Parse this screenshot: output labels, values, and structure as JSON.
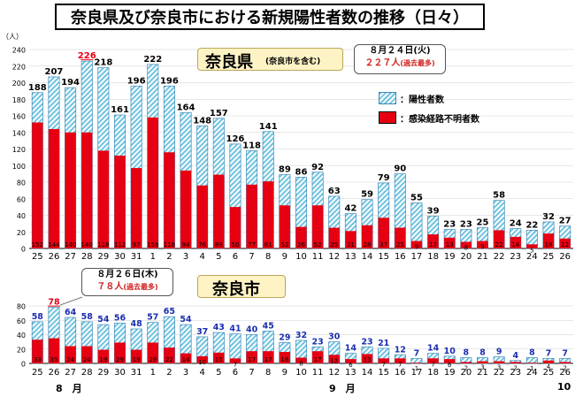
{
  "title": "奈良県及び奈良市における新規陽性者数の推移（日々）",
  "y_unit": "（人）",
  "legend": {
    "positive": "：陽性者数",
    "unknown": "：感染経路不明者数"
  },
  "colors": {
    "positive_hatch": "#6fc3e0",
    "positive_border": "#3a89b8",
    "unknown": "#e60012",
    "city_label": "#1a2eb0"
  },
  "months": {
    "aug": "8　月",
    "sep": "9　月",
    "oct": "10"
  },
  "prefecture_callout": {
    "date": "８月２４日(火)",
    "value": "２２７人",
    "note": "(過去最多)"
  },
  "city_callout": {
    "date": "８月２６日(木)",
    "value": "７８人",
    "note": "(過去最多)"
  },
  "chart_data": [
    {
      "type": "bar",
      "title": "奈良県",
      "subtitle": "(奈良市を含む)",
      "categories": [
        "25",
        "26",
        "27",
        "28",
        "29",
        "30",
        "31",
        "1",
        "2",
        "3",
        "4",
        "5",
        "6",
        "7",
        "8",
        "9",
        "10",
        "11",
        "12",
        "13",
        "14",
        "15",
        "16",
        "17",
        "18",
        "19",
        "20",
        "21",
        "22",
        "23",
        "24",
        "25",
        "26"
      ],
      "ylim": [
        0,
        240
      ],
      "yticks": [
        0,
        20,
        40,
        60,
        80,
        100,
        120,
        140,
        160,
        180,
        200,
        220,
        240
      ],
      "series": [
        {
          "name": "陽性者数",
          "values": [
            188,
            207,
            194,
            226,
            218,
            161,
            196,
            222,
            196,
            164,
            148,
            157,
            126,
            118,
            141,
            89,
            86,
            92,
            63,
            42,
            59,
            79,
            90,
            55,
            39,
            23,
            23,
            25,
            58,
            24,
            22,
            32,
            27
          ]
        },
        {
          "name": "感染経路不明者数",
          "values": [
            152,
            144,
            140,
            140,
            118,
            112,
            97,
            158,
            116,
            94,
            76,
            89,
            50,
            77,
            81,
            52,
            26,
            52,
            25,
            21,
            28,
            37,
            25,
            9,
            17,
            13,
            8,
            9,
            22,
            14,
            5,
            18,
            12
          ]
        }
      ]
    },
    {
      "type": "bar",
      "title": "奈良市",
      "categories": [
        "25",
        "26",
        "27",
        "28",
        "29",
        "30",
        "31",
        "1",
        "2",
        "3",
        "4",
        "5",
        "6",
        "7",
        "8",
        "9",
        "10",
        "11",
        "12",
        "13",
        "14",
        "15",
        "16",
        "17",
        "18",
        "19",
        "20",
        "21",
        "22",
        "23",
        "24",
        "25",
        "26"
      ],
      "ylim": [
        0,
        80
      ],
      "yticks": [
        0,
        20,
        40,
        60,
        80
      ],
      "series": [
        {
          "name": "陽性者数",
          "values": [
            58,
            78,
            64,
            58,
            54,
            56,
            48,
            57,
            65,
            54,
            37,
            43,
            41,
            40,
            45,
            29,
            32,
            23,
            30,
            14,
            23,
            21,
            12,
            7,
            14,
            10,
            8,
            8,
            9,
            4,
            8,
            7,
            7
          ]
        },
        {
          "name": "感染経路不明者数",
          "values": [
            33,
            35,
            24,
            24,
            19,
            29,
            19,
            29,
            22,
            14,
            10,
            15,
            7,
            17,
            17,
            16,
            8,
            17,
            12,
            6,
            13,
            7,
            7,
            1,
            7,
            6,
            2,
            3,
            3,
            2,
            1,
            4,
            2
          ]
        }
      ]
    }
  ]
}
